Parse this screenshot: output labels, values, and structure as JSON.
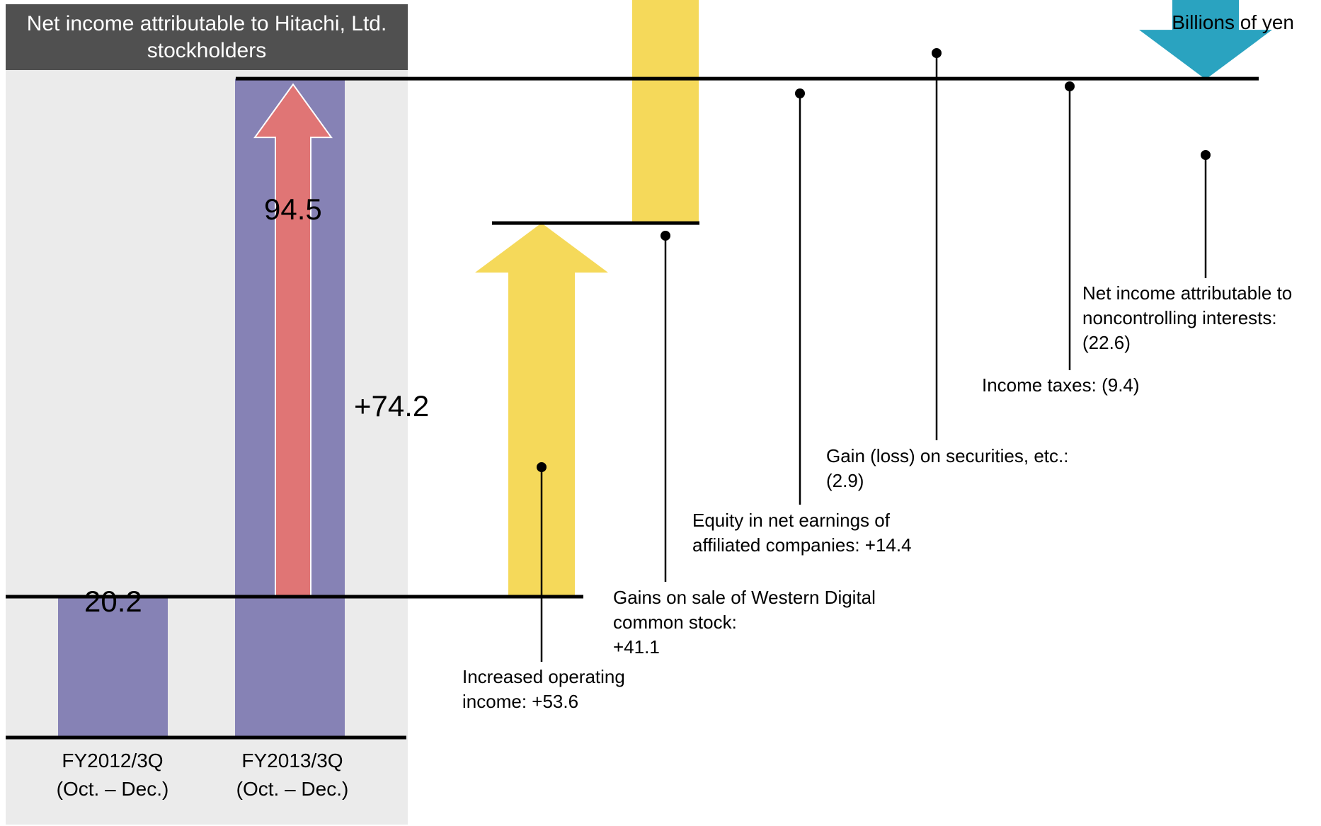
{
  "chart_data": {
    "type": "waterfall",
    "title": "Net income attributable to Hitachi, Ltd. stockholders",
    "unit": "Billions of yen",
    "categories": [
      "FY2012/3Q (Oct. – Dec.)",
      "FY2013/3Q (Oct. – Dec.)"
    ],
    "bars": [
      {
        "category": "FY2012/3Q",
        "period": "(Oct. – Dec.)",
        "value": 20.2,
        "label": "20.2"
      },
      {
        "category": "FY2013/3Q",
        "period": "(Oct. – Dec.)",
        "value": 94.5,
        "label": "94.5"
      }
    ],
    "total_change": {
      "value": 74.2,
      "label": "+74.2"
    },
    "steps": [
      {
        "name": "Increased operating income",
        "text": [
          "Increased operating",
          "income: +53.6"
        ],
        "value": 53.6,
        "direction": "up"
      },
      {
        "name": "Gains on sale of Western Digital common stock",
        "text": [
          "Gains on sale of Western Digital",
          "common stock:",
          "+41.1"
        ],
        "value": 41.1,
        "direction": "up"
      },
      {
        "name": "Equity in net earnings of affiliated companies",
        "text": [
          "Equity in net earnings of",
          "affiliated companies: +14.4"
        ],
        "value": 14.4,
        "direction": "up"
      },
      {
        "name": "Gain (loss) on securities, etc.",
        "text": [
          "Gain (loss) on securities, etc.:",
          "(2.9)"
        ],
        "value": -2.9,
        "direction": "down"
      },
      {
        "name": "Income taxes",
        "text": [
          "Income taxes: (9.4)"
        ],
        "value": -9.4,
        "direction": "down"
      },
      {
        "name": "Net income attributable to noncontrolling interests",
        "text": [
          "Net income attributable to",
          "noncontrolling interests:",
          "(22.6)"
        ],
        "value": -22.6,
        "direction": "down"
      }
    ],
    "colors": {
      "panel": "#ebebeb",
      "header": "#505050",
      "bar": "#8682b5",
      "total_arrow": "#e07575",
      "up_arrow": "#f5d95a",
      "down_arrow": "#2aa3c0",
      "line": "#000000"
    }
  }
}
